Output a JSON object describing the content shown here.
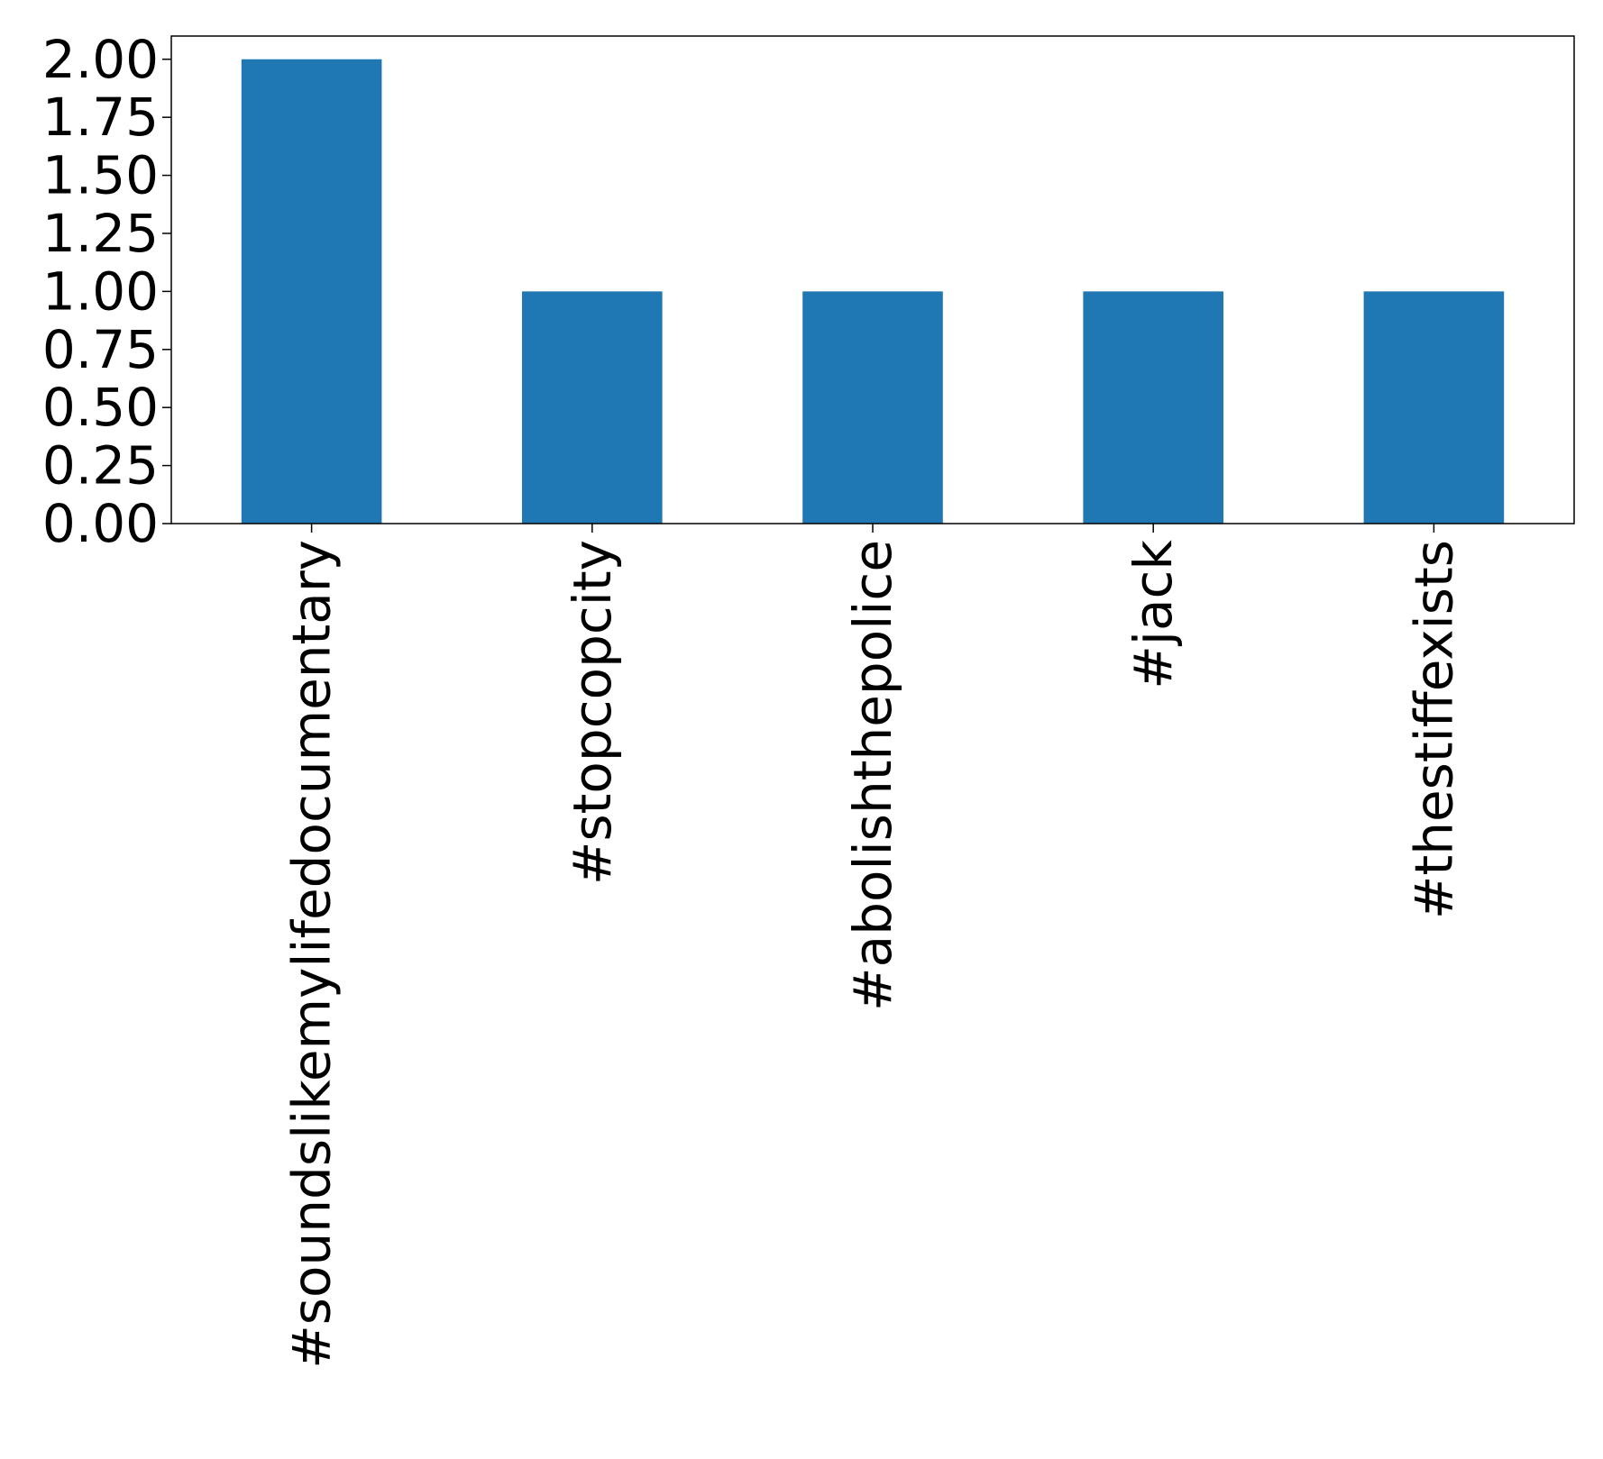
{
  "chart_data": {
    "type": "bar",
    "categories": [
      "#soundslikemylifedocumentary",
      "#stopcopcity",
      "#abolishthepolice",
      "#jack",
      "#thestiffexists"
    ],
    "values": [
      2,
      1,
      1,
      1,
      1
    ],
    "title": "",
    "xlabel": "",
    "ylabel": "",
    "ylim": [
      0,
      2.1
    ],
    "yticks": [
      "0.00",
      "0.25",
      "0.50",
      "0.75",
      "1.00",
      "1.25",
      "1.50",
      "1.75",
      "2.00"
    ],
    "grid": false,
    "legend": "none",
    "bar_color": "#1f77b4",
    "x_tick_rotation": "vertical"
  }
}
